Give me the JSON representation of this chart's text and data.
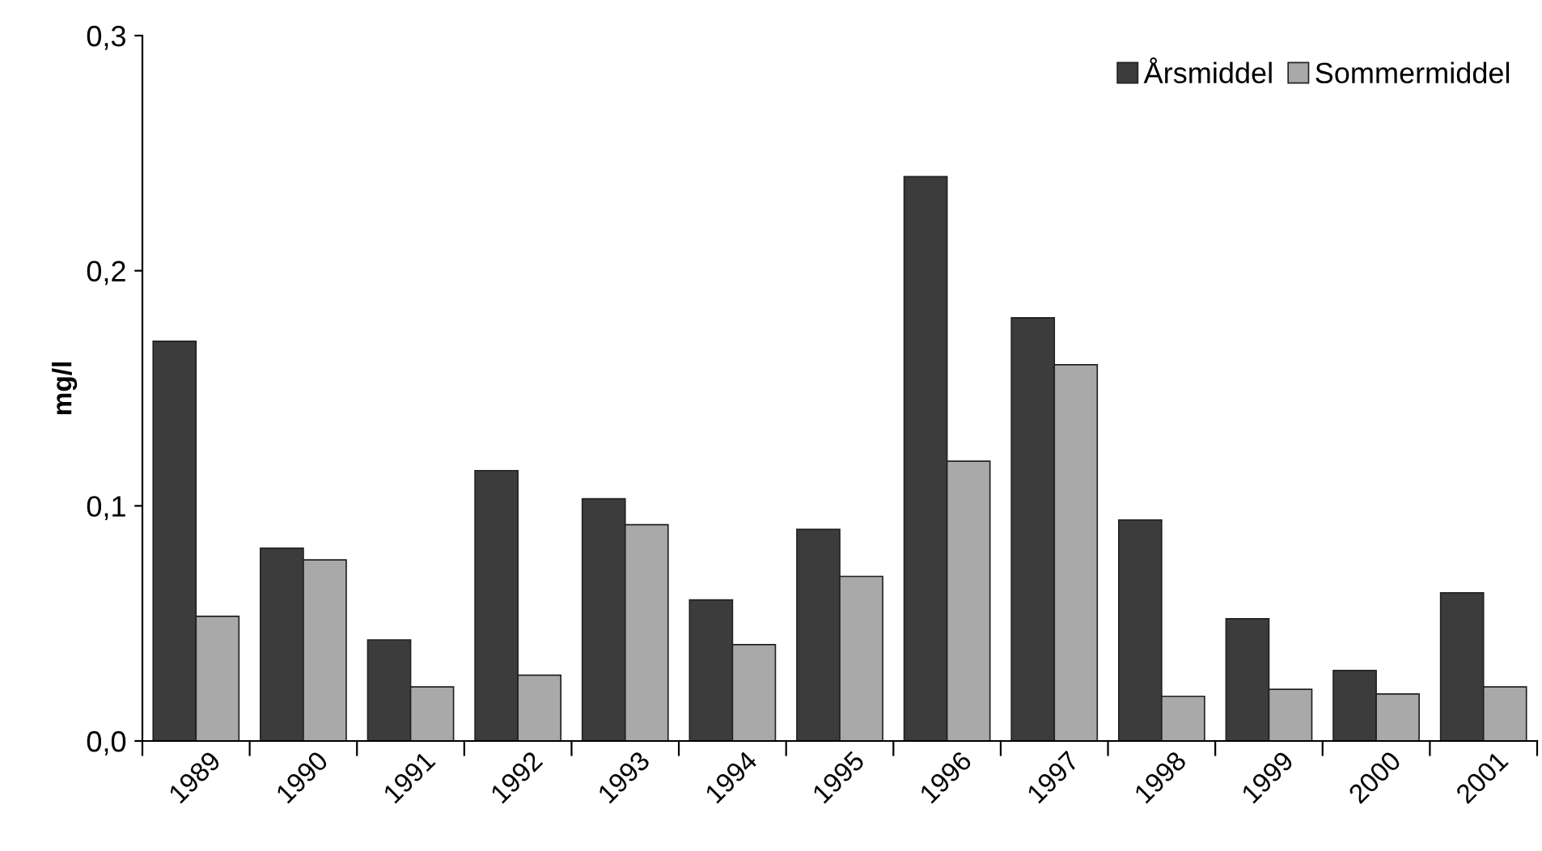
{
  "chart_data": {
    "type": "bar",
    "ylabel": "mg/l",
    "categories": [
      "1989",
      "1990",
      "1991",
      "1992",
      "1993",
      "1994",
      "1995",
      "1996",
      "1997",
      "1998",
      "1999",
      "2000",
      "2001"
    ],
    "series": [
      {
        "name": "Årsmiddel",
        "color": "#3c3c3c",
        "values": [
          0.17,
          0.082,
          0.043,
          0.115,
          0.103,
          0.06,
          0.09,
          0.24,
          0.18,
          0.094,
          0.052,
          0.03,
          0.063
        ]
      },
      {
        "name": "Sommermiddel",
        "color": "#a9a9a9",
        "values": [
          0.053,
          0.077,
          0.023,
          0.028,
          0.092,
          0.041,
          0.07,
          0.119,
          0.16,
          0.019,
          0.022,
          0.02,
          0.023
        ]
      }
    ],
    "ylim": [
      0,
      0.3
    ],
    "yticks": [
      {
        "value": 0,
        "label": "0,0"
      },
      {
        "value": 0.1,
        "label": "0,1"
      },
      {
        "value": 0.2,
        "label": "0,2"
      },
      {
        "value": 0.3,
        "label": "0,3"
      }
    ],
    "grid": false,
    "legend": "top right"
  }
}
